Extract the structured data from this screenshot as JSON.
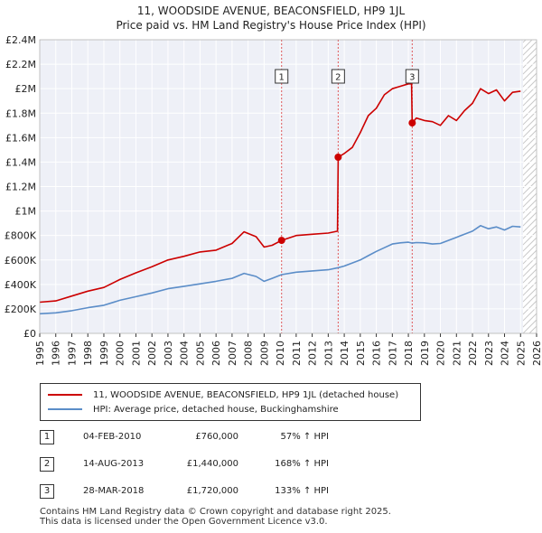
{
  "chart_data": {
    "type": "line",
    "title": "11, WOODSIDE AVENUE, BEACONSFIELD, HP9 1JL",
    "subtitle": "Price paid vs. HM Land Registry's House Price Index (HPI)",
    "xlim": [
      1995,
      2026
    ],
    "ylim": [
      0,
      2400000
    ],
    "x_ticks": [
      1995,
      1996,
      1997,
      1998,
      1999,
      2000,
      2001,
      2002,
      2003,
      2004,
      2005,
      2006,
      2007,
      2008,
      2009,
      2010,
      2011,
      2012,
      2013,
      2014,
      2015,
      2016,
      2017,
      2018,
      2019,
      2020,
      2021,
      2022,
      2023,
      2024,
      2025,
      2026
    ],
    "x_tick_labels": [
      "1995",
      "1996",
      "1997",
      "1998",
      "1999",
      "2000",
      "2001",
      "2002",
      "2003",
      "2004",
      "2005",
      "2006",
      "2007",
      "2008",
      "2009",
      "2010",
      "2011",
      "2012",
      "2013",
      "2014",
      "2015",
      "2016",
      "2017",
      "2018",
      "2019",
      "2020",
      "2021",
      "2022",
      "2023",
      "2024",
      "2025",
      "2026"
    ],
    "y_ticks": [
      0,
      200000,
      400000,
      600000,
      800000,
      1000000,
      1200000,
      1400000,
      1600000,
      1800000,
      2000000,
      2200000,
      2400000
    ],
    "y_tick_labels": [
      "£0",
      "£200K",
      "£400K",
      "£600K",
      "£800K",
      "£1M",
      "£1.2M",
      "£1.4M",
      "£1.6M",
      "£1.8M",
      "£2M",
      "£2.2M",
      "£2.4M"
    ],
    "grid": true,
    "projection_start_year": 2025.15,
    "series": [
      {
        "name": "11, WOODSIDE AVENUE, BEACONSFIELD, HP9 1JL (detached house)",
        "color": "#cc0000",
        "x": [
          1995.0,
          1996.0,
          1997.0,
          1998.0,
          1999.0,
          2000.0,
          2001.0,
          2002.0,
          2003.0,
          2004.0,
          2005.0,
          2006.0,
          2007.0,
          2007.75,
          2008.5,
          2009.0,
          2009.5,
          2010.09,
          2011.0,
          2012.0,
          2013.0,
          2013.58,
          2013.62,
          2014.0,
          2014.5,
          2015.0,
          2015.5,
          2016.0,
          2016.5,
          2017.0,
          2017.5,
          2018.0,
          2018.2,
          2018.24,
          2018.5,
          2019.0,
          2019.5,
          2020.0,
          2020.5,
          2021.0,
          2021.5,
          2022.0,
          2022.5,
          2023.0,
          2023.5,
          2024.0,
          2024.5,
          2025.0
        ],
        "values": [
          255000,
          265000,
          305000,
          345000,
          375000,
          440000,
          495000,
          545000,
          600000,
          630000,
          665000,
          680000,
          735000,
          830000,
          790000,
          705000,
          720000,
          760000,
          800000,
          810000,
          820000,
          835000,
          1440000,
          1470000,
          1520000,
          1640000,
          1780000,
          1840000,
          1950000,
          2000000,
          2020000,
          2040000,
          2040000,
          1720000,
          1760000,
          1740000,
          1730000,
          1700000,
          1780000,
          1740000,
          1820000,
          1880000,
          2000000,
          1960000,
          1990000,
          1900000,
          1970000,
          1980000
        ]
      },
      {
        "name": "HPI: Average price, detached house, Buckinghamshire",
        "color": "#5b8dc8",
        "x": [
          1995.0,
          1996.0,
          1997.0,
          1998.0,
          1999.0,
          2000.0,
          2001.0,
          2002.0,
          2003.0,
          2004.0,
          2005.0,
          2006.0,
          2007.0,
          2007.75,
          2008.5,
          2009.0,
          2009.5,
          2010.09,
          2011.0,
          2012.0,
          2013.0,
          2013.62,
          2014.0,
          2014.5,
          2015.0,
          2015.5,
          2016.0,
          2016.5,
          2017.0,
          2017.5,
          2018.0,
          2018.24,
          2018.5,
          2019.0,
          2019.5,
          2020.0,
          2020.5,
          2021.0,
          2021.5,
          2022.0,
          2022.5,
          2023.0,
          2023.5,
          2024.0,
          2024.5,
          2025.0
        ],
        "values": [
          160000,
          168000,
          185000,
          210000,
          230000,
          270000,
          300000,
          330000,
          365000,
          385000,
          405000,
          425000,
          450000,
          490000,
          465000,
          425000,
          450000,
          480000,
          500000,
          510000,
          520000,
          537000,
          550000,
          575000,
          600000,
          635000,
          670000,
          700000,
          730000,
          740000,
          745000,
          738000,
          742000,
          740000,
          730000,
          735000,
          760000,
          785000,
          810000,
          835000,
          880000,
          855000,
          870000,
          845000,
          875000,
          870000
        ]
      }
    ],
    "markers": [
      {
        "label": "1",
        "year": 2010.09,
        "value": 760000
      },
      {
        "label": "2",
        "year": 2013.62,
        "value": 1440000
      },
      {
        "label": "3",
        "year": 2018.24,
        "value": 1720000
      }
    ]
  },
  "legend": {
    "property_label": "11, WOODSIDE AVENUE, BEACONSFIELD, HP9 1JL (detached house)",
    "hpi_label": "HPI: Average price, detached house, Buckinghamshire",
    "property_color": "#cc0000",
    "hpi_color": "#5b8dc8"
  },
  "transactions": [
    {
      "num": "1",
      "date": "04-FEB-2010",
      "price": "£760,000",
      "hpi": "57% ↑ HPI"
    },
    {
      "num": "2",
      "date": "14-AUG-2013",
      "price": "£1,440,000",
      "hpi": "168% ↑ HPI"
    },
    {
      "num": "3",
      "date": "28-MAR-2018",
      "price": "£1,720,000",
      "hpi": "133% ↑ HPI"
    }
  ],
  "footer": {
    "line1": "Contains HM Land Registry data © Crown copyright and database right 2025.",
    "line2": "This data is licensed under the Open Government Licence v3.0."
  }
}
